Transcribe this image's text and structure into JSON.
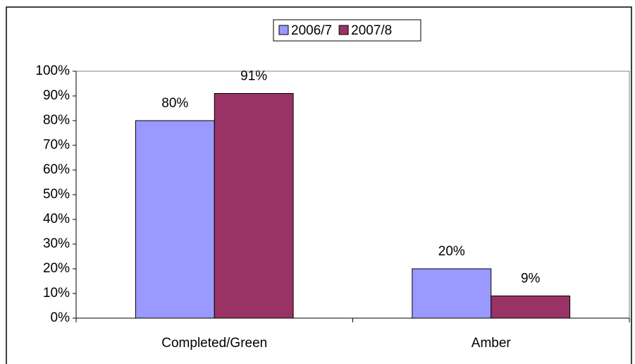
{
  "chart_data": {
    "type": "bar",
    "categories": [
      "Completed/Green",
      "Amber"
    ],
    "series": [
      {
        "name": "2006/7",
        "color": "#9999ff",
        "values": [
          80,
          20
        ],
        "value_labels": [
          "80%",
          "20%"
        ]
      },
      {
        "name": "2007/8",
        "color": "#993366",
        "values": [
          91,
          9
        ],
        "value_labels": [
          "91%",
          "9%"
        ]
      }
    ],
    "ylim": [
      0,
      100
    ],
    "yticks": [
      {
        "value": 0,
        "label": "0%"
      },
      {
        "value": 10,
        "label": "10%"
      },
      {
        "value": 20,
        "label": "20%"
      },
      {
        "value": 30,
        "label": "30%"
      },
      {
        "value": 40,
        "label": "40%"
      },
      {
        "value": 50,
        "label": "50%"
      },
      {
        "value": 60,
        "label": "60%"
      },
      {
        "value": 70,
        "label": "70%"
      },
      {
        "value": 80,
        "label": "80%"
      },
      {
        "value": 90,
        "label": "90%"
      },
      {
        "value": 100,
        "label": "100%"
      }
    ],
    "grid": false,
    "legend": "top"
  }
}
